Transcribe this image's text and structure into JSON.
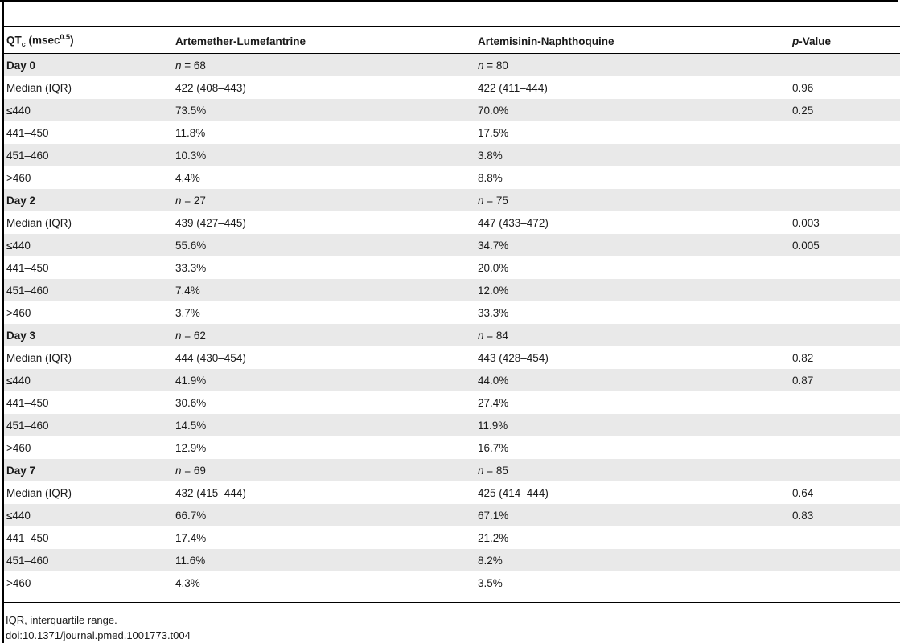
{
  "table": {
    "headers": {
      "col1_main": "QT",
      "col1_sub": "c",
      "col1_unit_pre": " (msec",
      "col1_unit_sup": "0.5",
      "col1_unit_post": ")",
      "col2": "Artemether-Lumefantrine",
      "col3": "Artemisinin-Naphthoquine",
      "col4_p": "p",
      "col4_rest": "-Value"
    },
    "rows": [
      {
        "c1": "Day 0",
        "c2": "n = 68",
        "c3": "n = 80",
        "c4": "",
        "section": true
      },
      {
        "c1": "Median (IQR)",
        "c2": "422 (408–443)",
        "c3": "422 (411–444)",
        "c4": "0.96"
      },
      {
        "c1": "≤440",
        "c2": "73.5%",
        "c3": "70.0%",
        "c4": "0.25"
      },
      {
        "c1": "441–450",
        "c2": "11.8%",
        "c3": "17.5%",
        "c4": ""
      },
      {
        "c1": "451–460",
        "c2": "10.3%",
        "c3": "3.8%",
        "c4": ""
      },
      {
        "c1": ">460",
        "c2": "4.4%",
        "c3": "8.8%",
        "c4": ""
      },
      {
        "c1": "Day 2",
        "c2": "n = 27",
        "c3": "n = 75",
        "c4": "",
        "section": true
      },
      {
        "c1": "Median (IQR)",
        "c2": "439 (427–445)",
        "c3": "447 (433–472)",
        "c4": "0.003"
      },
      {
        "c1": "≤440",
        "c2": "55.6%",
        "c3": "34.7%",
        "c4": "0.005"
      },
      {
        "c1": "441–450",
        "c2": "33.3%",
        "c3": "20.0%",
        "c4": ""
      },
      {
        "c1": "451–460",
        "c2": "7.4%",
        "c3": "12.0%",
        "c4": ""
      },
      {
        "c1": ">460",
        "c2": "3.7%",
        "c3": "33.3%",
        "c4": ""
      },
      {
        "c1": "Day 3",
        "c2": "n = 62",
        "c3": "n = 84",
        "c4": "",
        "section": true
      },
      {
        "c1": "Median (IQR)",
        "c2": "444 (430–454)",
        "c3": "443 (428–454)",
        "c4": "0.82"
      },
      {
        "c1": "≤440",
        "c2": "41.9%",
        "c3": "44.0%",
        "c4": "0.87"
      },
      {
        "c1": "441–450",
        "c2": "30.6%",
        "c3": "27.4%",
        "c4": ""
      },
      {
        "c1": "451–460",
        "c2": "14.5%",
        "c3": "11.9%",
        "c4": ""
      },
      {
        "c1": ">460",
        "c2": "12.9%",
        "c3": "16.7%",
        "c4": ""
      },
      {
        "c1": "Day 7",
        "c2": "n = 69",
        "c3": "n = 85",
        "c4": "",
        "section": true
      },
      {
        "c1": "Median (IQR)",
        "c2": "432 (415–444)",
        "c3": "425 (414–444)",
        "c4": "0.64"
      },
      {
        "c1": "≤440",
        "c2": "66.7%",
        "c3": "67.1%",
        "c4": "0.83"
      },
      {
        "c1": "441–450",
        "c2": "17.4%",
        "c3": "21.2%",
        "c4": ""
      },
      {
        "c1": "451–460",
        "c2": "11.6%",
        "c3": "8.2%",
        "c4": ""
      },
      {
        "c1": ">460",
        "c2": "4.3%",
        "c3": "3.5%",
        "c4": ""
      }
    ]
  },
  "footnotes": {
    "abbrev": "IQR, interquartile range.",
    "doi": "doi:10.1371/journal.pmed.1001773.t004"
  },
  "colors": {
    "shade": "#e9e9e9",
    "rule": "#000000"
  }
}
